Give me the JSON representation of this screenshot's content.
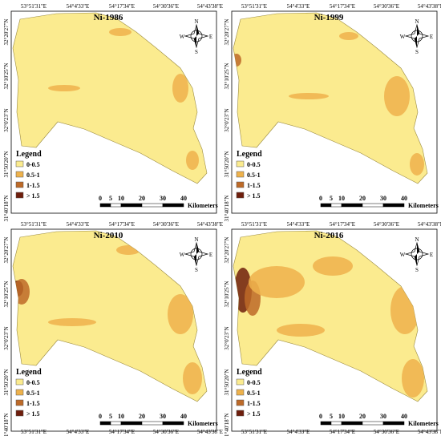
{
  "panels": [
    {
      "title": "Ni-1986"
    },
    {
      "title": "Ni-1999"
    },
    {
      "title": "Ni-2010"
    },
    {
      "title": "Ni-2016"
    }
  ],
  "longitude_labels": [
    "53°51'31\"E",
    "54°4'33\"E",
    "54°17'34\"E",
    "54°30'36\"E",
    "54°43'38\"E"
  ],
  "latitude_labels": [
    "32°20'27\"N",
    "32°10'25\"N",
    "32°0'23\"N",
    "31°50'20\"N",
    "31°40'18\"N"
  ],
  "legend": {
    "title": "Legend",
    "items": [
      {
        "label": "0-0.5",
        "color": "#fbeb8f"
      },
      {
        "label": "0.5-1",
        "color": "#eeb24c"
      },
      {
        "label": "1-1.5",
        "color": "#bd6a28"
      },
      {
        "label": "> 1.5",
        "color": "#6e1e0c"
      }
    ]
  },
  "scale": {
    "ticks": [
      0,
      5,
      10,
      20,
      30,
      40
    ],
    "unit": "Kilometers"
  },
  "compass": {
    "north": "N",
    "south": "S",
    "east": "E",
    "west": "W"
  }
}
